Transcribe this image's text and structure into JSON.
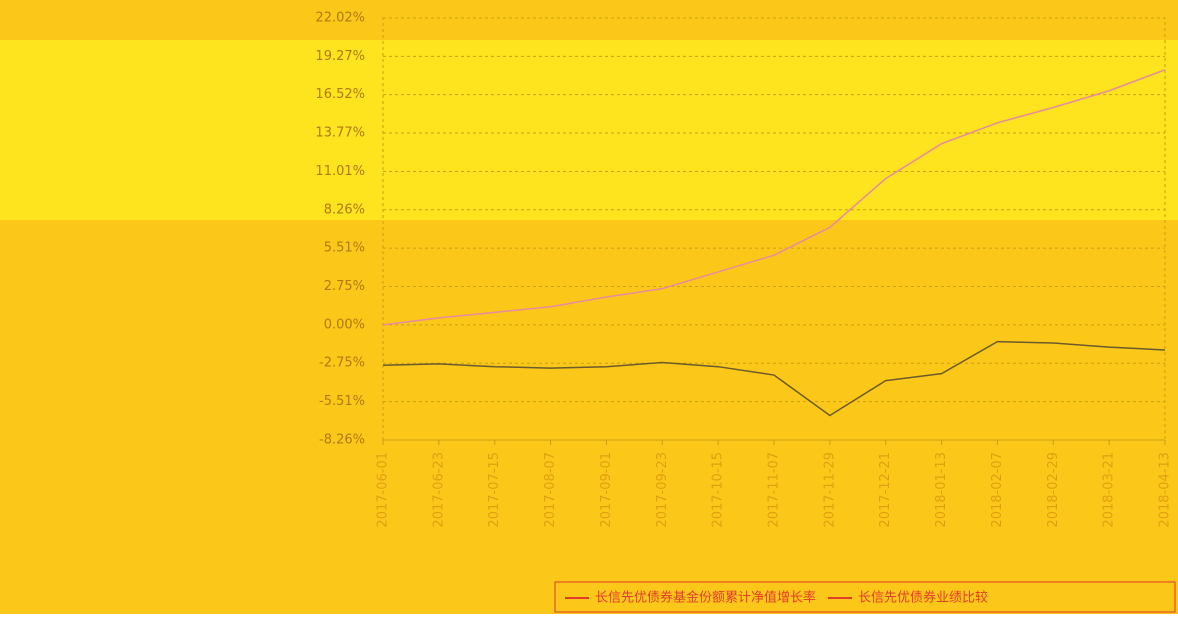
{
  "chart_data": {
    "type": "line",
    "categories": [
      "2017-06-01",
      "2017-06-23",
      "2017-07-15",
      "2017-08-07",
      "2017-09-01",
      "2017-09-23",
      "2017-10-15",
      "2017-11-07",
      "2017-11-29",
      "2017-12-21",
      "2018-01-13",
      "2018-02-07",
      "2018-02-29",
      "2018-03-21",
      "2018-04-13"
    ],
    "series": [
      {
        "name": "长信先优债券基金份额累计净值增长率",
        "color": "#e88aa0",
        "values": [
          0.0,
          0.5,
          0.9,
          1.3,
          2.0,
          2.6,
          3.8,
          5.0,
          7.0,
          10.5,
          13.0,
          14.5,
          15.6,
          16.8,
          18.3
        ]
      },
      {
        "name": "长信先优债券业绩比较",
        "color": "#6b5a2a",
        "values": [
          -2.9,
          -2.8,
          -3.0,
          -3.1,
          -3.0,
          -2.7,
          -3.0,
          -3.6,
          -6.5,
          -4.0,
          -3.5,
          -1.2,
          -1.3,
          -1.6,
          -1.8
        ]
      }
    ],
    "ylim": [
      -8.26,
      22.02
    ],
    "yticks": [
      {
        "value": 22.02,
        "label": "22.02%"
      },
      {
        "value": 19.27,
        "label": "19.27%"
      },
      {
        "value": 16.52,
        "label": "16.52%"
      },
      {
        "value": 13.77,
        "label": "13.77%"
      },
      {
        "value": 11.01,
        "label": "11.01%"
      },
      {
        "value": 8.26,
        "label": "8.26%"
      },
      {
        "value": 5.51,
        "label": "5.51%"
      },
      {
        "value": 2.75,
        "label": "2.75%"
      },
      {
        "value": 0,
        "label": "0.00%"
      },
      {
        "value": -2.75,
        "label": "-2.75%"
      },
      {
        "value": -5.51,
        "label": "-5.51%"
      },
      {
        "value": -8.26,
        "label": "-8.26%"
      }
    ],
    "grid": true
  }
}
